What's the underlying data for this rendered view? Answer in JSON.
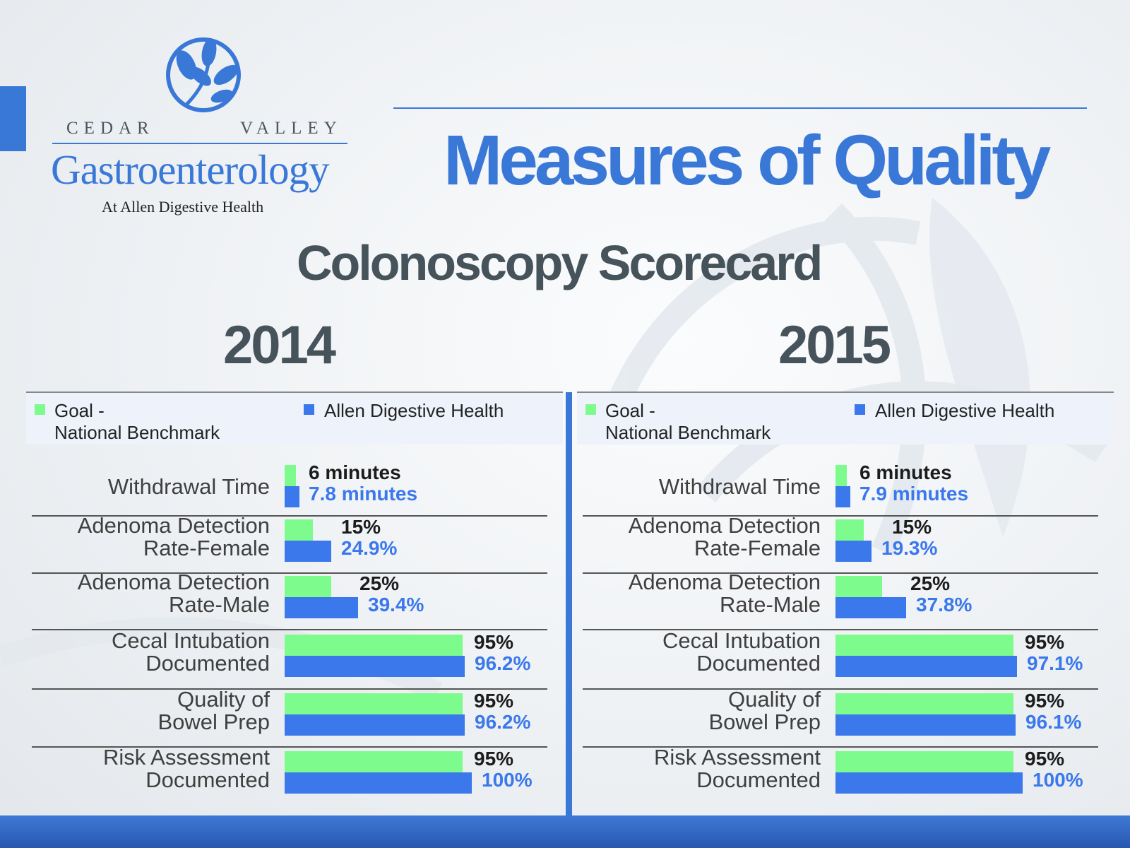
{
  "brand": {
    "line1_left": "CEDAR",
    "line1_right": "VALLEY",
    "name": "Gastroenterology",
    "tagline": "At Allen Digestive Health",
    "color": "#3a78d8"
  },
  "title": "Measures of Quality",
  "subtitle": "Colonoscopy Scorecard",
  "colors": {
    "goal": "#7dfb8c",
    "actual": "#3a78ec",
    "heading": "#46535b"
  },
  "chart_data": [
    {
      "type": "bar",
      "orientation": "horizontal",
      "title": "2014",
      "legend": {
        "goal": "Goal -",
        "goal_line2": "National Benchmark",
        "actual": "Allen Digestive Health"
      },
      "rows": [
        {
          "label": [
            "Withdrawal Time"
          ],
          "goal": 6,
          "actual": 7.8,
          "goal_text": "6 minutes",
          "actual_text": "7.8 minutes",
          "scale": "minutes"
        },
        {
          "label": [
            "Adenoma Detection",
            "Rate-Female"
          ],
          "goal": 15,
          "actual": 24.9,
          "goal_text": "15%",
          "actual_text": "24.9%",
          "scale": "percent"
        },
        {
          "label": [
            "Adenoma Detection",
            "Rate-Male"
          ],
          "goal": 25,
          "actual": 39.4,
          "goal_text": "25%",
          "actual_text": "39.4%",
          "scale": "percent"
        },
        {
          "label": [
            "Cecal Intubation",
            "Documented"
          ],
          "goal": 95,
          "actual": 96.2,
          "goal_text": "95%",
          "actual_text": "96.2%",
          "scale": "percent"
        },
        {
          "label": [
            "Quality of",
            "Bowel Prep"
          ],
          "goal": 95,
          "actual": 96.2,
          "goal_text": "95%",
          "actual_text": "96.2%",
          "scale": "percent"
        },
        {
          "label": [
            "Risk Assessment",
            "Documented"
          ],
          "goal": 95,
          "actual": 100,
          "goal_text": "95%",
          "actual_text": "100%",
          "scale": "percent"
        }
      ]
    },
    {
      "type": "bar",
      "orientation": "horizontal",
      "title": "2015",
      "legend": {
        "goal": "Goal -",
        "goal_line2": "National Benchmark",
        "actual": "Allen Digestive Health"
      },
      "rows": [
        {
          "label": [
            "Withdrawal Time"
          ],
          "goal": 6,
          "actual": 7.9,
          "goal_text": "6 minutes",
          "actual_text": "7.9 minutes",
          "scale": "minutes"
        },
        {
          "label": [
            "Adenoma Detection",
            "Rate-Female"
          ],
          "goal": 15,
          "actual": 19.3,
          "goal_text": "15%",
          "actual_text": "19.3%",
          "scale": "percent"
        },
        {
          "label": [
            "Adenoma Detection",
            "Rate-Male"
          ],
          "goal": 25,
          "actual": 37.8,
          "goal_text": "25%",
          "actual_text": "37.8%",
          "scale": "percent"
        },
        {
          "label": [
            "Cecal Intubation",
            "Documented"
          ],
          "goal": 95,
          "actual": 97.1,
          "goal_text": "95%",
          "actual_text": "97.1%",
          "scale": "percent"
        },
        {
          "label": [
            "Quality of",
            "Bowel Prep"
          ],
          "goal": 95,
          "actual": 96.1,
          "goal_text": "95%",
          "actual_text": "96.1%",
          "scale": "percent"
        },
        {
          "label": [
            "Risk Assessment",
            "Documented"
          ],
          "goal": 95,
          "actual": 100,
          "goal_text": "95%",
          "actual_text": "100%",
          "scale": "percent"
        }
      ]
    }
  ]
}
